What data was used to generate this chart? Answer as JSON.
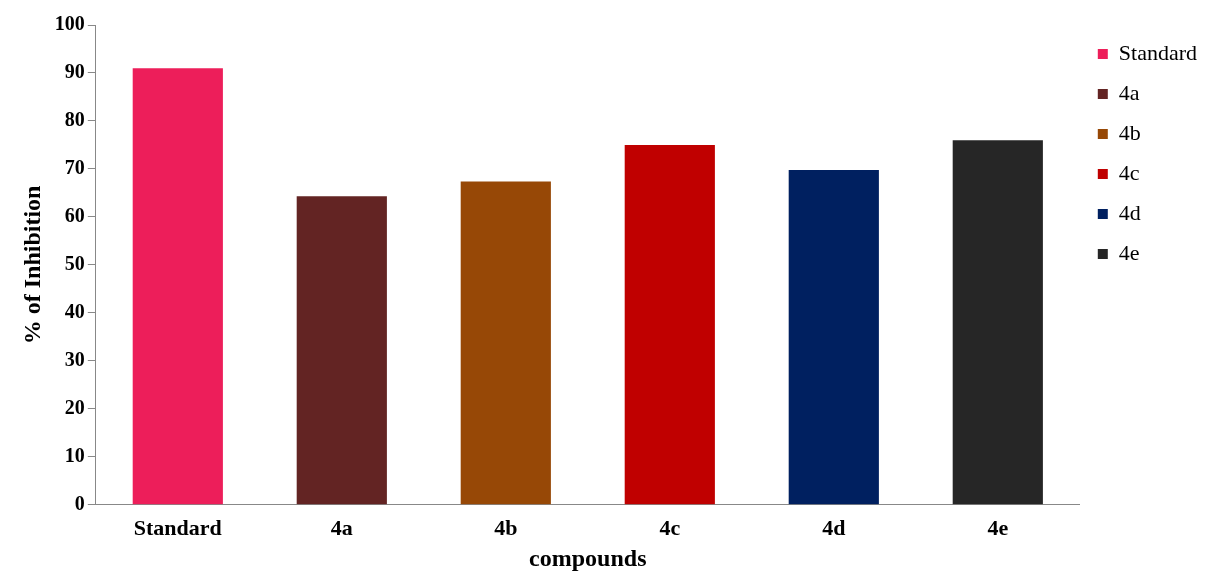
{
  "chart_data": {
    "type": "bar",
    "xlabel": "compounds",
    "ylabel": "% of Inhibition",
    "categories": [
      "Standard",
      "4a",
      "4b",
      "4c",
      "4d",
      "4e"
    ],
    "series": [
      {
        "name": "Standard",
        "color": "#ed1e5a",
        "values": [
          91,
          null,
          null,
          null,
          null,
          null
        ]
      },
      {
        "name": "4a",
        "color": "#632423",
        "values": [
          null,
          64.3,
          null,
          null,
          null,
          null
        ]
      },
      {
        "name": "4b",
        "color": "#974806",
        "values": [
          null,
          null,
          67.4,
          null,
          null,
          null
        ]
      },
      {
        "name": "4c",
        "color": "#c00000",
        "values": [
          null,
          null,
          null,
          75,
          null,
          null
        ]
      },
      {
        "name": "4d",
        "color": "#002060",
        "values": [
          null,
          null,
          null,
          null,
          69.8,
          null
        ]
      },
      {
        "name": "4e",
        "color": "#262626",
        "values": [
          null,
          null,
          null,
          null,
          null,
          76
        ]
      }
    ],
    "ylim": [
      0,
      100
    ],
    "yticks": [
      0,
      10,
      20,
      30,
      40,
      50,
      60,
      70,
      80,
      90,
      100
    ],
    "grid": false,
    "legend": "top right"
  }
}
